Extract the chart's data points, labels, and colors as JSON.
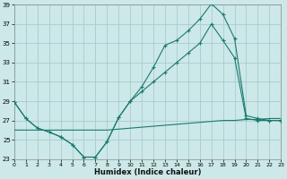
{
  "xlabel": "Humidex (Indice chaleur)",
  "bg_color": "#cce8e8",
  "grid_color": "#aacccc",
  "line_color": "#1a7a6e",
  "xlim": [
    0,
    23
  ],
  "ylim": [
    23,
    39
  ],
  "yticks": [
    23,
    25,
    27,
    29,
    31,
    33,
    35,
    37,
    39
  ],
  "xticks": [
    0,
    1,
    2,
    3,
    4,
    5,
    6,
    7,
    8,
    9,
    10,
    11,
    12,
    13,
    14,
    15,
    16,
    17,
    18,
    19,
    20,
    21,
    22,
    23
  ],
  "line1": [
    28.9,
    27.2,
    26.2,
    25.8,
    25.3,
    24.5,
    23.2,
    23.2,
    24.8,
    27.3,
    29.0,
    30.5,
    32.5,
    34.8,
    35.3,
    36.3,
    37.5,
    39.1,
    38.0,
    35.5,
    27.5,
    27.2,
    27.0,
    27.0
  ],
  "line2": [
    28.9,
    27.2,
    26.2,
    25.8,
    25.3,
    24.5,
    23.2,
    23.2,
    24.8,
    27.3,
    29.0,
    30.0,
    31.0,
    32.0,
    33.0,
    34.0,
    35.0,
    37.0,
    35.3,
    33.5,
    27.2,
    27.0,
    27.0,
    27.0
  ],
  "line3": [
    26.0,
    26.0,
    26.0,
    26.0,
    26.0,
    26.0,
    26.0,
    26.0,
    26.0,
    26.1,
    26.2,
    26.3,
    26.4,
    26.5,
    26.6,
    26.7,
    26.8,
    26.9,
    27.0,
    27.0,
    27.1,
    27.1,
    27.2,
    27.2
  ]
}
